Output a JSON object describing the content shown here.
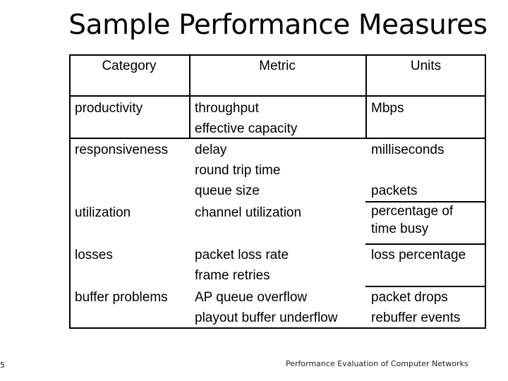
{
  "slide": {
    "title": "Sample Performance Measures",
    "footer": "Performance Evaluation of Computer Networks",
    "page_number": "5"
  },
  "table": {
    "headers": [
      "Category",
      "Metric",
      "Units"
    ],
    "rows": [
      {
        "category": "productivity",
        "metrics": [
          "throughput",
          "effective capacity"
        ],
        "units": [
          "Mbps",
          ""
        ]
      },
      {
        "category": "responsiveness",
        "metrics": [
          "delay",
          "round trip time",
          "queue size"
        ],
        "units": [
          "milliseconds",
          "",
          "packets"
        ]
      },
      {
        "category": "utilization",
        "metrics": [
          "channel utilization"
        ],
        "units": [
          "percentage of",
          "time busy"
        ]
      },
      {
        "category": "losses",
        "metrics": [
          "packet loss rate",
          "frame retries"
        ],
        "units": [
          "loss percentage",
          ""
        ]
      },
      {
        "category": "buffer problems",
        "metrics": [
          "AP queue overflow",
          "playout buffer underflow"
        ],
        "units": [
          "packet drops",
          "rebuffer events"
        ]
      }
    ]
  }
}
